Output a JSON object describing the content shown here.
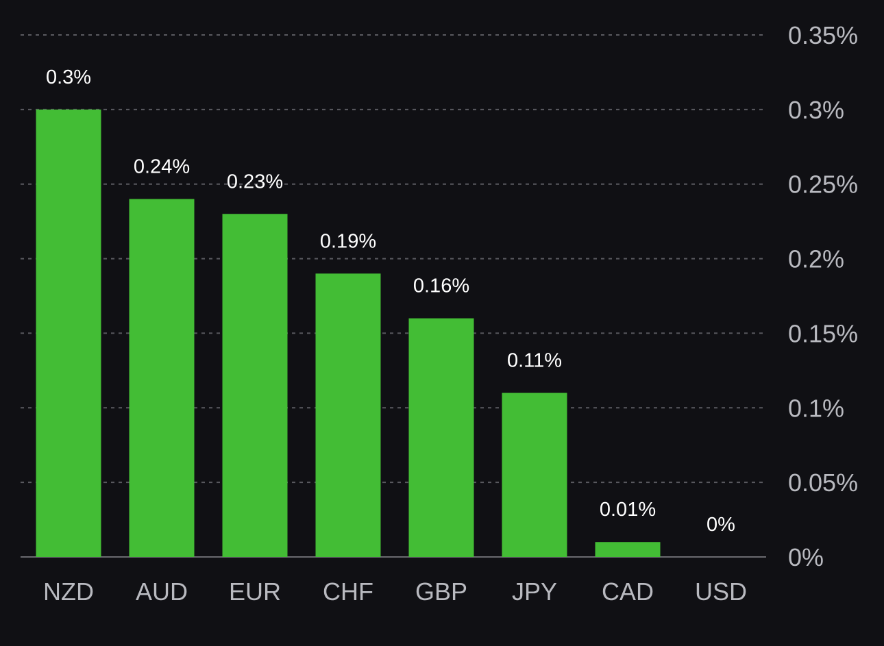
{
  "colors": {
    "background": "#101014",
    "bar": "#43bd35",
    "grid": "#5a5a60",
    "tick_text": "#b9bac0",
    "label_text": "#ffffff"
  },
  "chart_data": {
    "type": "bar",
    "categories": [
      "NZD",
      "AUD",
      "EUR",
      "CHF",
      "GBP",
      "JPY",
      "CAD",
      "USD"
    ],
    "values": [
      0.3,
      0.24,
      0.23,
      0.19,
      0.16,
      0.11,
      0.01,
      0
    ],
    "data_labels": [
      "0.3%",
      "0.24%",
      "0.23%",
      "0.19%",
      "0.16%",
      "0.11%",
      "0.01%",
      "0%"
    ],
    "ylim": [
      0,
      0.35
    ],
    "yticks": [
      0,
      0.05,
      0.1,
      0.15,
      0.2,
      0.25,
      0.3,
      0.35
    ],
    "ytick_labels": [
      "0%",
      "0.05%",
      "0.1%",
      "0.15%",
      "0.2%",
      "0.25%",
      "0.3%",
      "0.35%"
    ],
    "y_axis_side": "right",
    "grid": true,
    "grid_style": "dashed",
    "legend": "none"
  }
}
